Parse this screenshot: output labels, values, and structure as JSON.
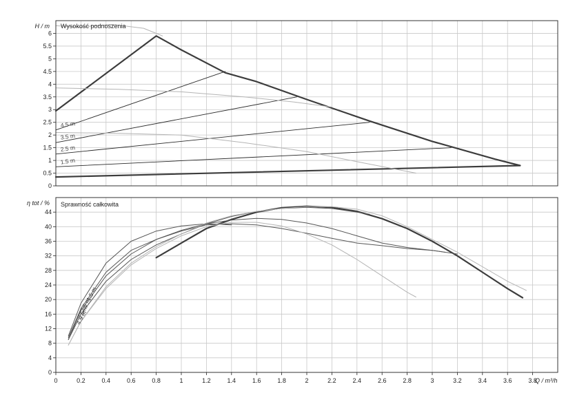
{
  "chart_data": [
    {
      "type": "line",
      "title": "Wysokość podnoszenia",
      "ylabel": "H / m",
      "xlim": [
        0,
        4.0
      ],
      "ylim": [
        0,
        6.5
      ],
      "yticks": [
        0,
        0.5,
        1,
        1.5,
        2,
        2.5,
        3,
        3.5,
        4,
        4.5,
        5,
        5.5,
        6
      ],
      "ytick_labels": [
        "0",
        "0.5",
        "1",
        "1.5",
        "2",
        "2.5",
        "3",
        "3.5",
        "4",
        "4.5",
        "5",
        "5.5",
        "6"
      ],
      "grid": true,
      "curve_labels": [
        {
          "text": "4.5 m",
          "x": 0.04,
          "y": 2.3
        },
        {
          "text": "3.5 m",
          "x": 0.04,
          "y": 1.82
        },
        {
          "text": "2.5 m",
          "x": 0.04,
          "y": 1.35
        },
        {
          "text": "1.5 m",
          "x": 0.04,
          "y": 0.85
        }
      ],
      "series": [
        {
          "style": "bold",
          "x": [
            0,
            0.8,
            1.0,
            1.35,
            1.6,
            2.0,
            2.5,
            3.0,
            3.5,
            3.7
          ],
          "y": [
            2.95,
            5.9,
            5.35,
            4.45,
            4.1,
            3.4,
            2.55,
            1.75,
            1.05,
            0.8
          ]
        },
        {
          "style": "bold",
          "x": [
            0,
            3.7
          ],
          "y": [
            0.35,
            0.8
          ]
        },
        {
          "style": "thin",
          "x": [
            0,
            1.35
          ],
          "y": [
            2.2,
            4.5
          ]
        },
        {
          "style": "thin",
          "x": [
            0,
            1.92
          ],
          "y": [
            1.7,
            3.5
          ]
        },
        {
          "style": "thin",
          "x": [
            0,
            2.5
          ],
          "y": [
            1.25,
            2.5
          ]
        },
        {
          "style": "thin",
          "x": [
            0,
            3.15
          ],
          "y": [
            0.75,
            1.5
          ]
        },
        {
          "style": "gray",
          "x": [
            0,
            0.2,
            0.45,
            0.7,
            0.85
          ],
          "y": [
            6.3,
            6.25,
            6.35,
            6.2,
            5.9
          ]
        },
        {
          "style": "gray",
          "x": [
            0,
            0.5,
            1.0,
            1.5,
            1.9,
            2.2
          ],
          "y": [
            3.85,
            3.8,
            3.7,
            3.5,
            3.3,
            3.1
          ]
        },
        {
          "style": "gray",
          "x": [
            0,
            0.5,
            1.0,
            1.5,
            2.0,
            2.4,
            2.87
          ],
          "y": [
            2.1,
            2.07,
            2.0,
            1.7,
            1.35,
            0.95,
            0.5
          ]
        }
      ]
    },
    {
      "type": "line",
      "title": "Sprawność całkowita",
      "ylabel": "η tot / %",
      "xlabel": "Q / m³/h",
      "xlim": [
        0,
        4.0
      ],
      "ylim": [
        0,
        48
      ],
      "xticks": [
        0,
        0.2,
        0.4,
        0.6,
        0.8,
        1,
        1.2,
        1.4,
        1.6,
        1.8,
        2,
        2.2,
        2.4,
        2.6,
        2.8,
        3,
        3.2,
        3.4,
        3.6,
        3.8
      ],
      "xtick_labels": [
        "0",
        "0.2",
        "0.4",
        "0.6",
        "0.8",
        "1",
        "1.2",
        "1.4",
        "1.6",
        "1.8",
        "2",
        "2.2",
        "2.4",
        "2.6",
        "2.8",
        "3",
        "3.2",
        "3.4",
        "3.6",
        "3.8"
      ],
      "yticks": [
        0,
        4,
        8,
        12,
        16,
        20,
        24,
        28,
        32,
        36,
        40,
        44
      ],
      "ytick_labels": [
        "0",
        "4",
        "8",
        "12",
        "16",
        "20",
        "24",
        "28",
        "32",
        "36",
        "40",
        "44"
      ],
      "grid": true,
      "curve_labels": [
        {
          "text": "1.5 m",
          "x": 0.27,
          "y": 19.5
        },
        {
          "text": "2.5 m",
          "x": 0.22,
          "y": 16.5
        },
        {
          "text": "3.5 m",
          "x": 0.2,
          "y": 14.5
        },
        {
          "text": "4.5 m",
          "x": 0.19,
          "y": 13.0
        }
      ],
      "series": [
        {
          "style": "bold",
          "x": [
            0.8,
            1.0,
            1.2,
            1.4,
            1.6,
            1.8,
            2.0,
            2.2,
            2.4,
            2.6,
            2.8,
            3.0,
            3.2,
            3.4,
            3.6,
            3.72
          ],
          "y": [
            31.5,
            35.5,
            39.5,
            42.0,
            44.0,
            45.2,
            45.6,
            45.3,
            44.2,
            42.2,
            39.5,
            36.0,
            32.0,
            27.5,
            23.0,
            20.5
          ]
        },
        {
          "style": "dark",
          "x": [
            0.1,
            0.2,
            0.4,
            0.6,
            0.8,
            1.0,
            1.2,
            1.4,
            1.6,
            1.8,
            2.0,
            2.2,
            2.4,
            2.5
          ],
          "y": [
            9.0,
            16.0,
            25.0,
            31.0,
            35.0,
            38.0,
            40.8,
            42.8,
            44.2,
            45.0,
            45.3,
            45.0,
            44.0,
            43.4
          ]
        },
        {
          "style": "dark",
          "x": [
            0.1,
            0.2,
            0.4,
            0.6,
            0.8,
            1.0,
            1.2,
            1.4,
            1.6,
            1.8,
            2.0,
            2.2,
            2.4,
            2.6,
            2.8,
            3.0,
            3.2
          ],
          "y": [
            9.0,
            17.0,
            26.5,
            32.5,
            36.5,
            39.0,
            40.8,
            41.8,
            42.3,
            42.0,
            41.0,
            39.5,
            37.5,
            35.5,
            34.3,
            33.5,
            32.5
          ]
        },
        {
          "style": "dark",
          "x": [
            0.1,
            0.2,
            0.4,
            0.6,
            0.8,
            1.0,
            1.2,
            1.4,
            1.6,
            1.8,
            2.0,
            2.2,
            2.4,
            2.6,
            2.8,
            3.0,
            3.1
          ],
          "y": [
            9.5,
            17.5,
            27.5,
            33.5,
            36.5,
            38.8,
            40.5,
            40.8,
            40.5,
            39.5,
            38.2,
            36.8,
            35.5,
            34.8,
            34.0,
            33.5,
            33.0
          ]
        },
        {
          "style": "dark",
          "x": [
            0.1,
            0.2,
            0.4,
            0.6,
            0.8,
            1.0,
            1.2,
            1.4
          ],
          "y": [
            10.0,
            19.0,
            30.0,
            36.0,
            38.8,
            40.2,
            40.8,
            40.5
          ]
        },
        {
          "style": "gray",
          "x": [
            0.1,
            0.2,
            0.4,
            0.6,
            0.8,
            1.0,
            1.2,
            1.4,
            1.6,
            1.8,
            2.0,
            2.2,
            2.4,
            2.6,
            2.8,
            2.87
          ],
          "y": [
            7.5,
            14.0,
            23.0,
            29.5,
            34.0,
            37.5,
            40.0,
            41.2,
            41.2,
            40.2,
            38.0,
            35.0,
            31.0,
            26.5,
            22.0,
            20.7
          ]
        },
        {
          "style": "gray",
          "x": [
            0.1,
            0.2,
            0.4,
            0.6,
            0.8,
            1.0,
            1.2,
            1.4,
            1.6,
            1.8,
            2.0,
            2.2,
            2.4,
            2.6,
            2.8,
            3.0,
            3.2,
            3.4,
            3.6,
            3.75
          ],
          "y": [
            7.5,
            14.0,
            23.5,
            30.0,
            34.5,
            38.0,
            41.0,
            43.0,
            44.2,
            45.0,
            45.5,
            45.5,
            44.8,
            43.0,
            40.0,
            36.5,
            33.0,
            29.0,
            25.0,
            22.5
          ]
        }
      ]
    }
  ]
}
